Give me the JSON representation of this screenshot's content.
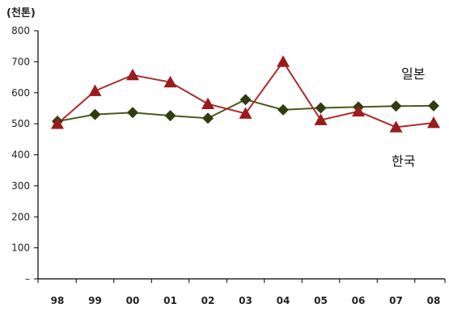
{
  "chart_data": {
    "type": "line",
    "unit_label": "(천톤)",
    "categories": [
      "98",
      "99",
      "00",
      "01",
      "02",
      "03",
      "04",
      "05",
      "06",
      "07",
      "08"
    ],
    "ylim": [
      0,
      800
    ],
    "yticks": [
      {
        "value": 0,
        "label": "–"
      },
      {
        "value": 100,
        "label": "100"
      },
      {
        "value": 200,
        "label": "200"
      },
      {
        "value": 300,
        "label": "300"
      },
      {
        "value": 400,
        "label": "400"
      },
      {
        "value": 500,
        "label": "500"
      },
      {
        "value": 600,
        "label": "600"
      },
      {
        "value": 700,
        "label": "700"
      },
      {
        "value": 800,
        "label": "800"
      }
    ],
    "grid": false,
    "series": [
      {
        "name": "일본",
        "marker": "diamond",
        "color": "#4a5a1a",
        "marker_color": "#2f3d10",
        "values": [
          508,
          530,
          536,
          526,
          518,
          578,
          545,
          551,
          554,
          557,
          558
        ]
      },
      {
        "name": "한국",
        "marker": "triangle",
        "color": "#b02a2a",
        "marker_color": "#9a1c1c",
        "values": [
          500,
          606,
          657,
          634,
          564,
          533,
          700,
          512,
          540,
          489,
          503
        ]
      }
    ]
  }
}
